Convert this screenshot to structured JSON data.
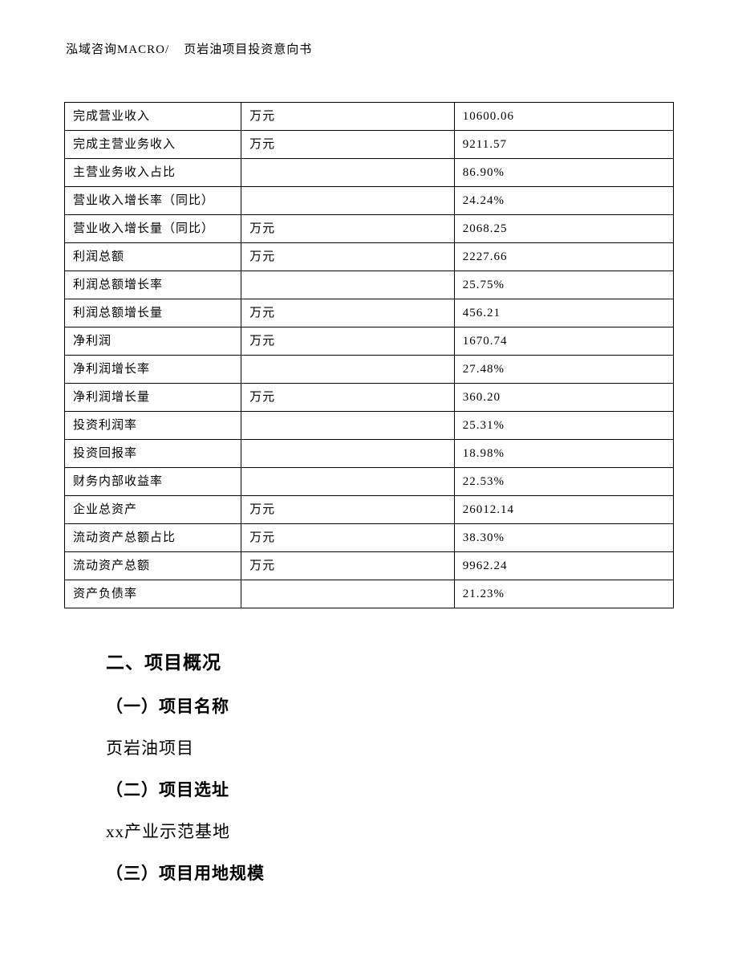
{
  "header": {
    "left": "泓域咨询MACRO/",
    "right": "页岩油项目投资意向书"
  },
  "table": {
    "rows": [
      {
        "label": "完成营业收入",
        "unit": "万元",
        "value": "10600.06"
      },
      {
        "label": "完成主营业务收入",
        "unit": "万元",
        "value": "9211.57"
      },
      {
        "label": "主营业务收入占比",
        "unit": "",
        "value": "86.90%"
      },
      {
        "label": "营业收入增长率（同比）",
        "unit": "",
        "value": "24.24%"
      },
      {
        "label": "营业收入增长量（同比）",
        "unit": "万元",
        "value": "2068.25"
      },
      {
        "label": "利润总额",
        "unit": "万元",
        "value": "2227.66"
      },
      {
        "label": "利润总额增长率",
        "unit": "",
        "value": "25.75%"
      },
      {
        "label": "利润总额增长量",
        "unit": "万元",
        "value": "456.21"
      },
      {
        "label": "净利润",
        "unit": "万元",
        "value": "1670.74"
      },
      {
        "label": "净利润增长率",
        "unit": "",
        "value": "27.48%"
      },
      {
        "label": "净利润增长量",
        "unit": "万元",
        "value": "360.20"
      },
      {
        "label": "投资利润率",
        "unit": "",
        "value": "25.31%"
      },
      {
        "label": "投资回报率",
        "unit": "",
        "value": "18.98%"
      },
      {
        "label": "财务内部收益率",
        "unit": "",
        "value": "22.53%"
      },
      {
        "label": "企业总资产",
        "unit": "万元",
        "value": "26012.14"
      },
      {
        "label": "流动资产总额占比",
        "unit": "万元",
        "value": "38.30%"
      },
      {
        "label": "流动资产总额",
        "unit": "万元",
        "value": "9962.24"
      },
      {
        "label": "资产负债率",
        "unit": "",
        "value": "21.23%"
      }
    ]
  },
  "sections": {
    "main_heading": "二、项目概况",
    "s1": {
      "heading": "（一）项目名称",
      "text": "页岩油项目"
    },
    "s2": {
      "heading": "（二）项目选址",
      "text": "xx产业示范基地"
    },
    "s3": {
      "heading": "（三）项目用地规模"
    }
  }
}
